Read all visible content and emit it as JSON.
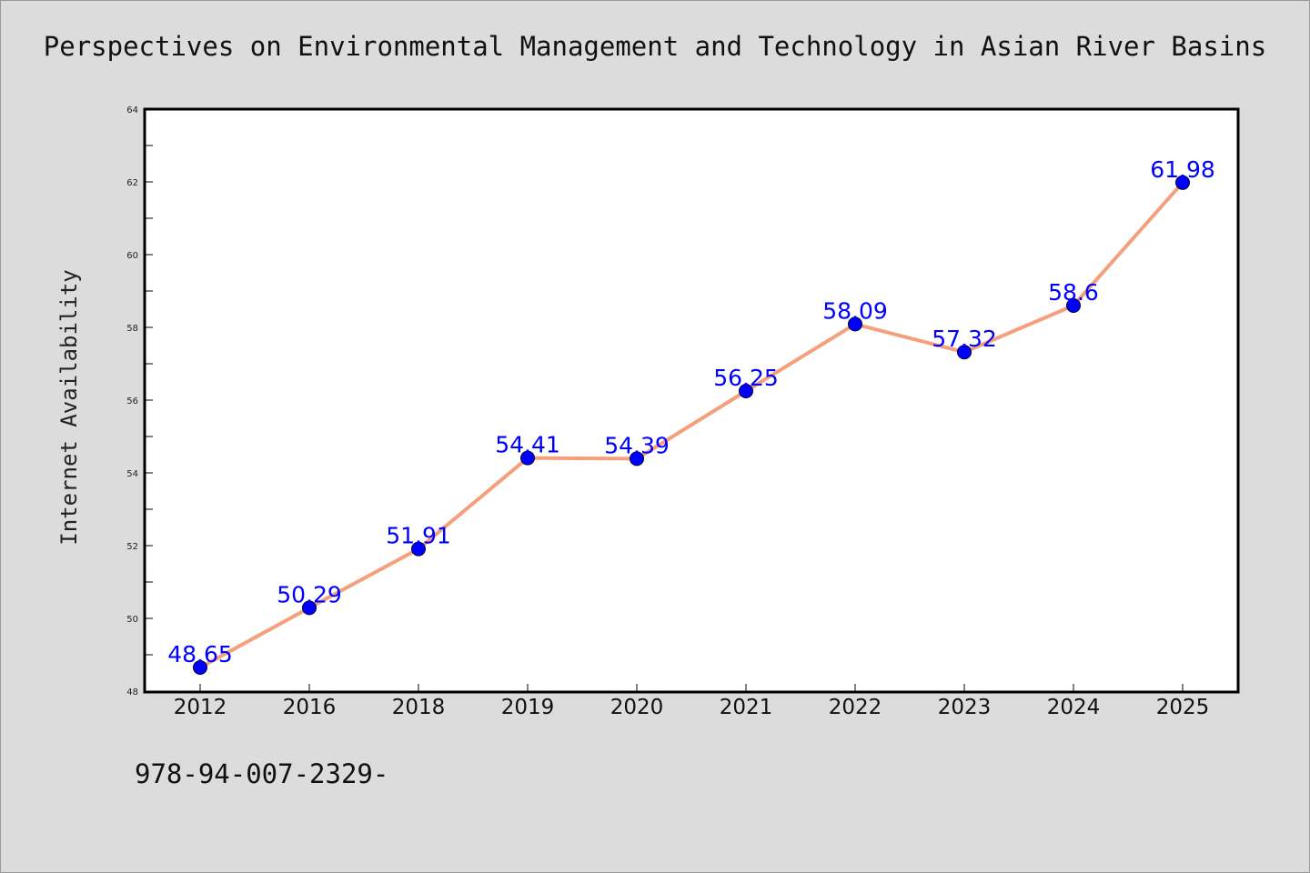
{
  "page": {
    "title": "Perspectives on Environmental Management and Technology in Asian River Basins",
    "footer_text": "978-94-007-2329-"
  },
  "chart_data": {
    "type": "line",
    "title": "Perspectives on Environmental Management and Technology in Asian River Basins",
    "xlabel": "",
    "ylabel": "Internet Availability",
    "categories": [
      "2012",
      "2016",
      "2018",
      "2019",
      "2020",
      "2021",
      "2022",
      "2023",
      "2024",
      "2025"
    ],
    "values": [
      48.65,
      50.29,
      51.91,
      54.41,
      54.39,
      56.25,
      58.09,
      57.32,
      58.6,
      61.98
    ],
    "data_labels": [
      "48.65",
      "50.29",
      "51.91",
      "54.41",
      "54.39",
      "56.25",
      "58.09",
      "57.32",
      "58.6",
      "61.98"
    ],
    "ylim": [
      48,
      64
    ],
    "yticks": [
      48,
      50,
      52,
      54,
      56,
      58,
      60,
      62,
      64
    ],
    "grid": false,
    "legend": "none",
    "line_color": "#f4a07c",
    "marker_color": "#0000ff"
  }
}
